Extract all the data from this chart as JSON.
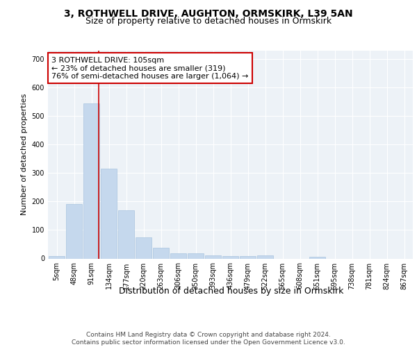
{
  "title1": "3, ROTHWELL DRIVE, AUGHTON, ORMSKIRK, L39 5AN",
  "title2": "Size of property relative to detached houses in Ormskirk",
  "xlabel": "Distribution of detached houses by size in Ormskirk",
  "ylabel": "Number of detached properties",
  "categories": [
    "5sqm",
    "48sqm",
    "91sqm",
    "134sqm",
    "177sqm",
    "220sqm",
    "263sqm",
    "306sqm",
    "350sqm",
    "393sqm",
    "436sqm",
    "479sqm",
    "522sqm",
    "565sqm",
    "608sqm",
    "651sqm",
    "695sqm",
    "738sqm",
    "781sqm",
    "824sqm",
    "867sqm"
  ],
  "values": [
    8,
    190,
    545,
    315,
    170,
    75,
    38,
    18,
    18,
    12,
    8,
    8,
    12,
    0,
    0,
    5,
    0,
    0,
    0,
    0,
    0
  ],
  "bar_color": "#c5d8ed",
  "bar_edgecolor": "#a8c4df",
  "vline_x": 2.43,
  "vline_color": "#cc0000",
  "annotation_text": "3 ROTHWELL DRIVE: 105sqm\n← 23% of detached houses are smaller (319)\n76% of semi-detached houses are larger (1,064) →",
  "ylim": [
    0,
    730
  ],
  "yticks": [
    0,
    100,
    200,
    300,
    400,
    500,
    600,
    700
  ],
  "footer_text": "Contains HM Land Registry data © Crown copyright and database right 2024.\nContains public sector information licensed under the Open Government Licence v3.0.",
  "plot_bg_color": "#edf2f7",
  "title1_fontsize": 10,
  "title2_fontsize": 9,
  "xlabel_fontsize": 9,
  "ylabel_fontsize": 8,
  "tick_fontsize": 7,
  "annotation_fontsize": 8,
  "footer_fontsize": 6.5
}
